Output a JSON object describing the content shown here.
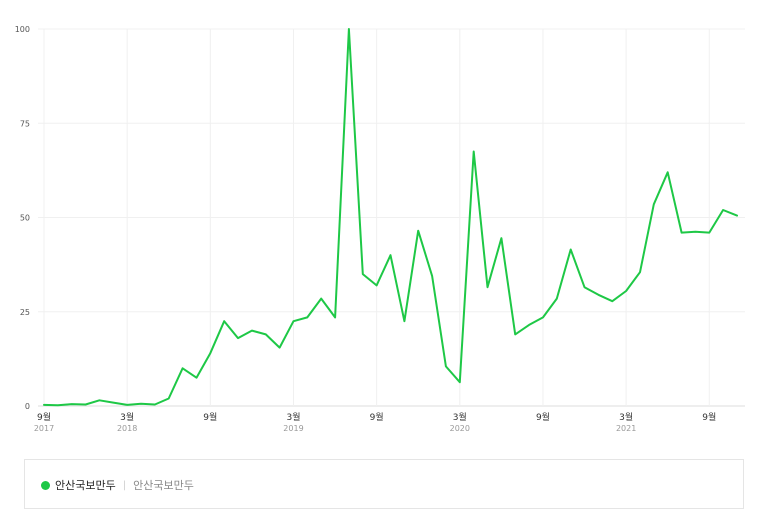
{
  "chart_data": {
    "type": "line",
    "ylim": [
      0,
      100
    ],
    "yticks": [
      0,
      25,
      50,
      75,
      100
    ],
    "x_axis_labels": [
      {
        "month": "9월",
        "year": "2017"
      },
      {
        "month": "3월",
        "year": "2018"
      },
      {
        "month": "9월",
        "year": ""
      },
      {
        "month": "3월",
        "year": "2019"
      },
      {
        "month": "9월",
        "year": ""
      },
      {
        "month": "3월",
        "year": "2020"
      },
      {
        "month": "9월",
        "year": ""
      },
      {
        "month": "3월",
        "year": "2021"
      },
      {
        "month": "9월",
        "year": ""
      }
    ],
    "months_per_tick": 6,
    "grid": true,
    "legend_position": "bottom",
    "series": [
      {
        "name": "안산국보만두",
        "color": "#1ec846",
        "values": [
          0.3,
          0.2,
          0.5,
          0.4,
          1.5,
          0.9,
          0.3,
          0.6,
          0.4,
          2,
          10,
          7.5,
          14,
          22.5,
          18,
          20,
          19,
          15.5,
          22.5,
          23.5,
          28.5,
          23.5,
          100,
          35,
          32,
          40,
          22.5,
          46.5,
          34.5,
          10.5,
          6.3,
          67.5,
          31.5,
          44.5,
          19,
          21.5,
          23.5,
          28.5,
          41.5,
          31.5,
          29.5,
          27.8,
          30.5,
          35.5,
          53.5,
          62,
          46,
          46.2,
          46,
          52,
          50.5
        ]
      }
    ]
  },
  "legend": {
    "name": "안산국보만두",
    "sub": "안산국보만두",
    "separator": "|"
  }
}
